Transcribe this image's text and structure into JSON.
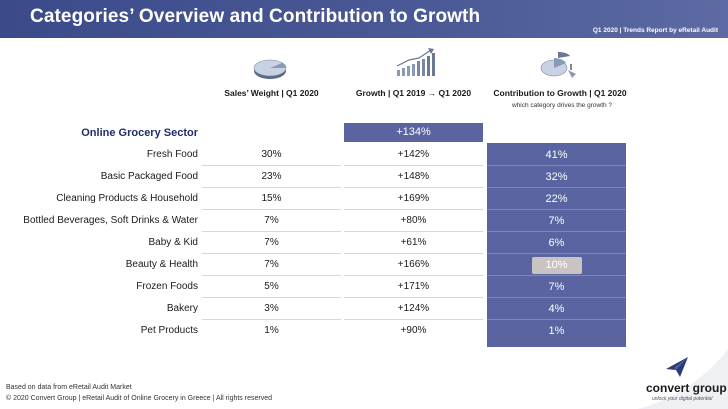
{
  "header": {
    "title": "Categories’ Overview and Contribution to Growth",
    "subtitle": "Q1 2020 | Trends Report by eRetail Audit"
  },
  "columns": {
    "weight": "Sales’ Weight | Q1 2020",
    "growth": "Growth | Q1 2019 → Q1 2020",
    "contribution": "Contribution to Growth | Q1 2020",
    "contribution_sub": "which category drives the growth ?"
  },
  "icons": {
    "weight": "pie-chart-icon",
    "growth": "bar-growth-icon",
    "contribution": "exploded-pie-icon",
    "logo": "paper-plane-icon"
  },
  "sector": {
    "label": "Online Grocery Sector",
    "growth": "+134%"
  },
  "rows": [
    {
      "category": "Fresh Food",
      "weight": "30%",
      "growth": "+142%",
      "contribution": "41%"
    },
    {
      "category": "Basic Packaged Food",
      "weight": "23%",
      "growth": "+148%",
      "contribution": "32%"
    },
    {
      "category": "Cleaning Products & Household",
      "weight": "15%",
      "growth": "+169%",
      "contribution": "22%"
    },
    {
      "category": "Bottled Beverages, Soft Drinks & Water",
      "weight": "7%",
      "growth": "+80%",
      "contribution": "7%"
    },
    {
      "category": "Baby & Kid",
      "weight": "7%",
      "growth": "+61%",
      "contribution": "6%"
    },
    {
      "category": "Beauty & Health",
      "weight": "7%",
      "growth": "+166%",
      "contribution": "10%"
    },
    {
      "category": "Frozen Foods",
      "weight": "5%",
      "growth": "+171%",
      "contribution": "7%"
    },
    {
      "category": "Bakery",
      "weight": "3%",
      "growth": "+124%",
      "contribution": "4%"
    },
    {
      "category": "Pet Products",
      "weight": "1%",
      "growth": "+90%",
      "contribution": "1%"
    }
  ],
  "colors": {
    "header": "#3b4a8a",
    "accent": "#5964a0",
    "highlight": "#c9c4c1",
    "sector_text": "#1f2e6b"
  },
  "footer": {
    "source": "Based on data from eRetail Audit Market",
    "copyright": "© 2020 Convert Group | eRetail Audit of Online Grocery in Greece | All rights reserved"
  },
  "logo": {
    "name": "convert group",
    "tagline": "unlock your digital potential"
  }
}
